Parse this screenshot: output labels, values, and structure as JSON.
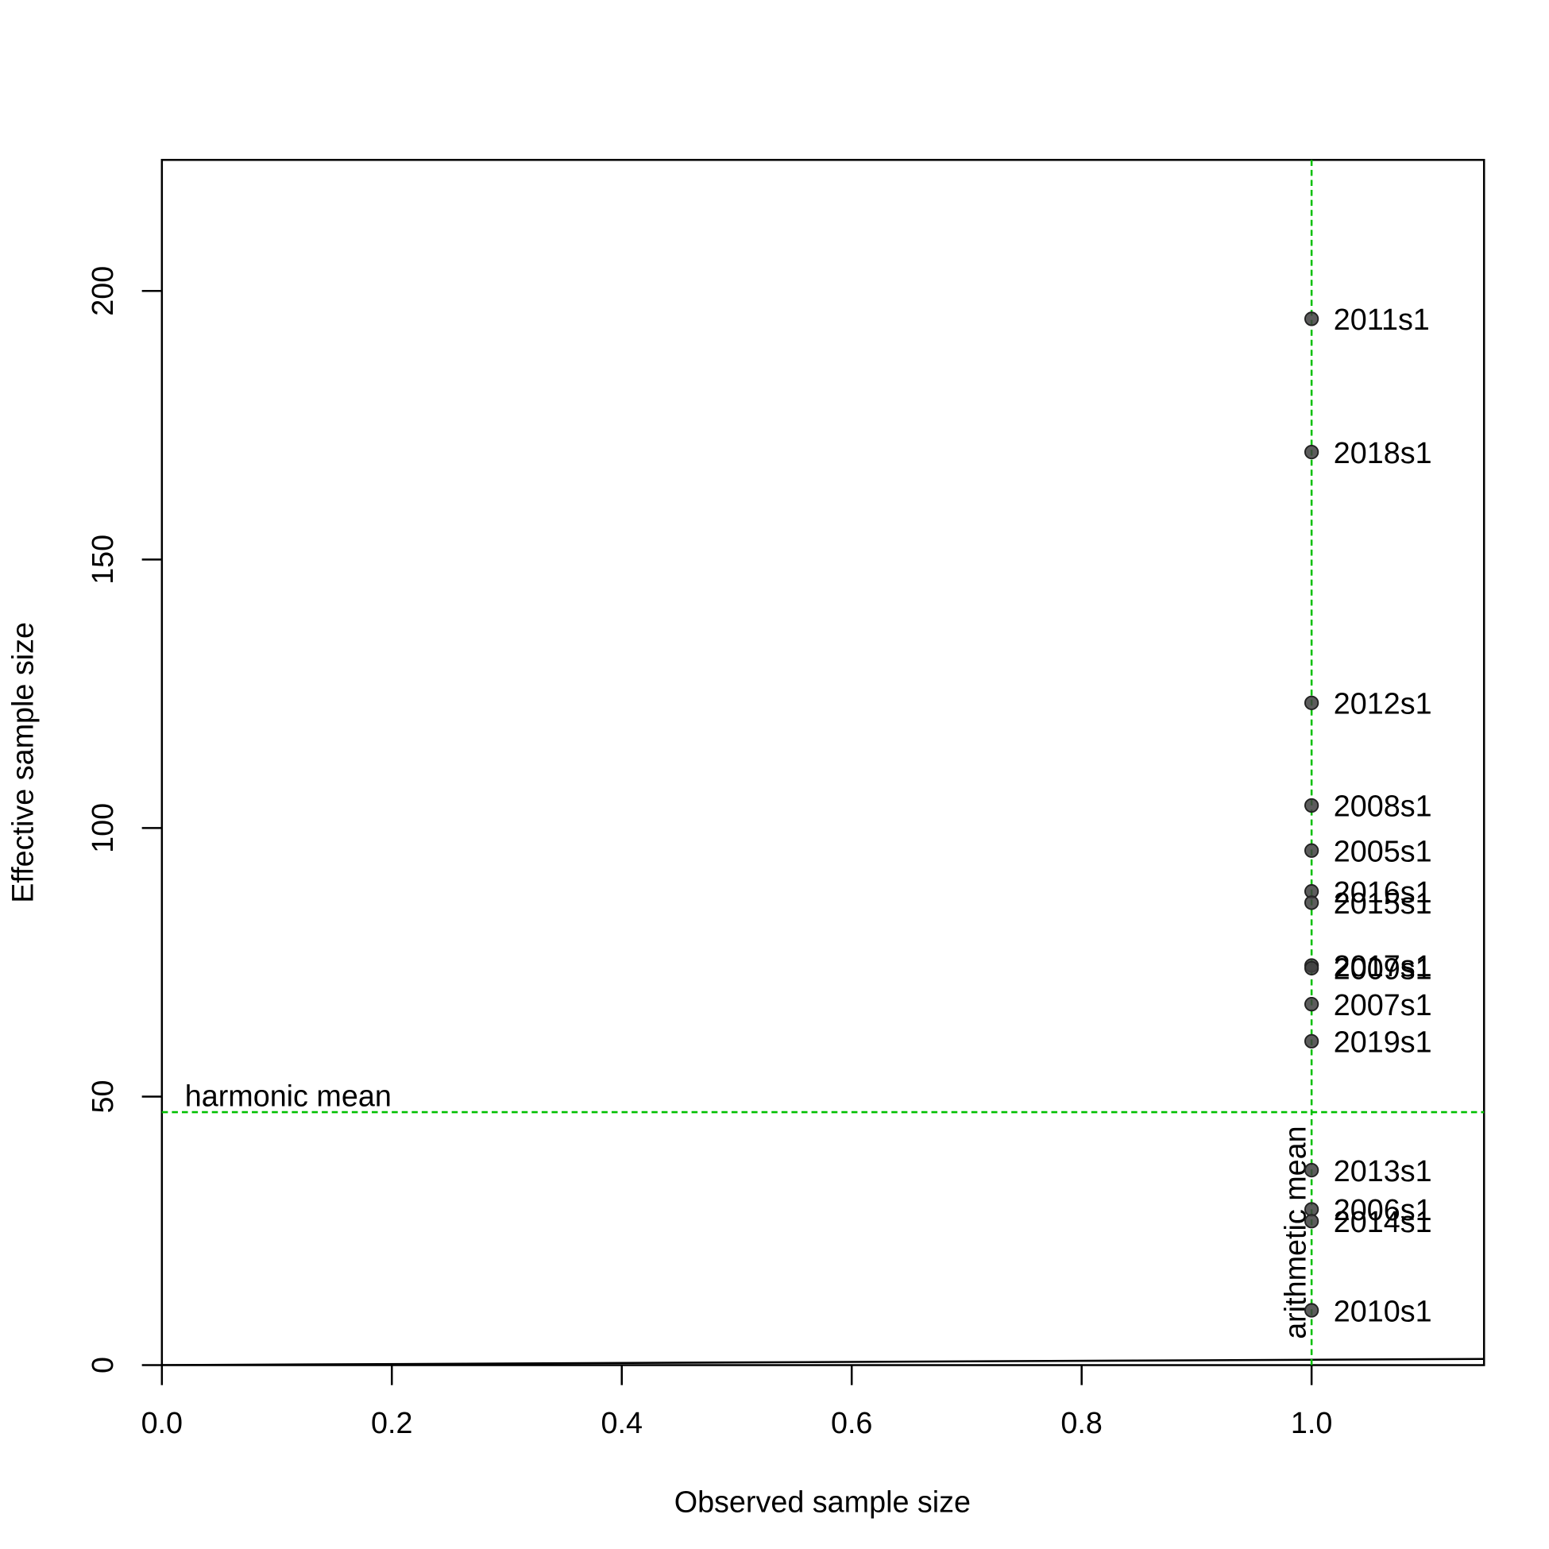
{
  "chart_data": {
    "type": "scatter",
    "xlabel": "Observed sample size",
    "ylabel": "Effective sample size",
    "x": [
      1,
      1,
      1,
      1,
      1,
      1,
      1,
      1,
      1,
      1,
      1,
      1,
      1,
      1,
      1
    ],
    "values": [
      194.8,
      170.0,
      123.3,
      104.2,
      95.8,
      88.2,
      86.1,
      74.4,
      73.9,
      67.2,
      60.3,
      36.3,
      29.0,
      26.8,
      10.2
    ],
    "point_labels": [
      "2011s1",
      "2018s1",
      "2012s1",
      "2008s1",
      "2005s1",
      "2016s1",
      "2015s1",
      "2017s1",
      "2009s1",
      "2007s1",
      "2019s1",
      "2013s1",
      "2006s1",
      "2014s1",
      "2010s1"
    ],
    "color": "#404040",
    "xlim": [
      0,
      1.15
    ],
    "ylim": [
      0,
      224.4
    ],
    "xticks": [
      {
        "value": 0,
        "label": "0.0"
      },
      0.2,
      0.4,
      0.6,
      0.8,
      {
        "value": 1,
        "label": "1.0"
      }
    ],
    "yticks": [
      0,
      50,
      100,
      150,
      200
    ],
    "identity_line": true,
    "hlines": [
      {
        "value": 47.1,
        "label": "harmonic mean",
        "color": "#00c000"
      }
    ],
    "vlines": [
      {
        "value": 1,
        "label": "arithmetic mean",
        "color": "#00c000"
      }
    ]
  }
}
